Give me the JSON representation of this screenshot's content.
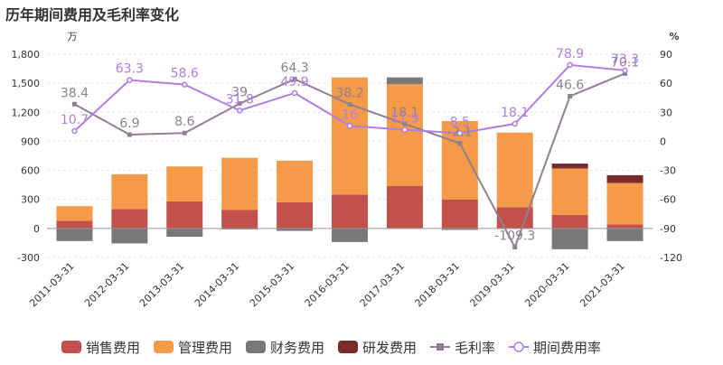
{
  "chart_data": {
    "type": "bar",
    "title": "历年期间费用及毛利率变化",
    "categories": [
      "2011-03-31",
      "2012-03-31",
      "2013-03-31",
      "2014-03-31",
      "2015-03-31",
      "2016-03-31",
      "2017-03-31",
      "2018-03-31",
      "2019-03-31",
      "2020-03-31",
      "2021-03-31"
    ],
    "stacked": true,
    "y_left": {
      "unit": "万",
      "range": [
        -300,
        1800
      ],
      "ticks": [
        -300,
        0,
        300,
        600,
        900,
        1200,
        1500,
        1800
      ]
    },
    "y_right": {
      "unit": "%",
      "range": [
        -120,
        90
      ],
      "ticks": [
        -120,
        -90,
        -60,
        -30,
        0,
        30,
        60,
        90
      ]
    },
    "grid": true,
    "legend_position": "bottom",
    "series": [
      {
        "name": "销售费用",
        "kind": "bar",
        "axis": "left",
        "color": "#c4504c",
        "values": [
          80,
          200,
          280,
          190,
          270,
          350,
          440,
          300,
          220,
          140,
          40
        ]
      },
      {
        "name": "管理费用",
        "kind": "bar",
        "axis": "left",
        "color": "#f59a48",
        "values": [
          150,
          360,
          360,
          540,
          430,
          1210,
          1050,
          810,
          770,
          480,
          430
        ]
      },
      {
        "name": "财务费用",
        "kind": "bar",
        "axis": "left",
        "color": "#787878",
        "values": [
          -130,
          -155,
          -85,
          -10,
          -25,
          -140,
          70,
          -15,
          -5,
          -215,
          -130
        ]
      },
      {
        "name": "研发费用",
        "kind": "bar",
        "axis": "left",
        "color": "#7b2a2a",
        "values": [
          0,
          0,
          0,
          0,
          0,
          0,
          0,
          0,
          0,
          50,
          80
        ]
      },
      {
        "name": "毛利率",
        "kind": "line",
        "axis": "right",
        "color": "#8e8090",
        "marker": "square",
        "values": [
          38.4,
          6.9,
          8.6,
          39,
          64.3,
          38.2,
          18.1,
          -2.1,
          -109.3,
          46.6,
          70.1
        ],
        "labels": [
          "38.4",
          "6.9",
          "8.6",
          "39",
          "64.3",
          "38.2",
          "18.1",
          "-2.1",
          "-109.3",
          "46.6",
          "70.1"
        ]
      },
      {
        "name": "期间费用率",
        "kind": "line",
        "axis": "right",
        "color": "#b07ee0",
        "marker": "circle",
        "values": [
          10.7,
          63.3,
          58.6,
          31.8,
          49.9,
          16,
          11.9,
          8.5,
          18.1,
          78.9,
          73.3
        ],
        "labels": [
          "10.7",
          "63.3",
          "58.6",
          "31.8",
          "49.9",
          "16",
          "11.9",
          "8.5",
          "18.1",
          "78.9",
          "73.3"
        ]
      }
    ]
  }
}
